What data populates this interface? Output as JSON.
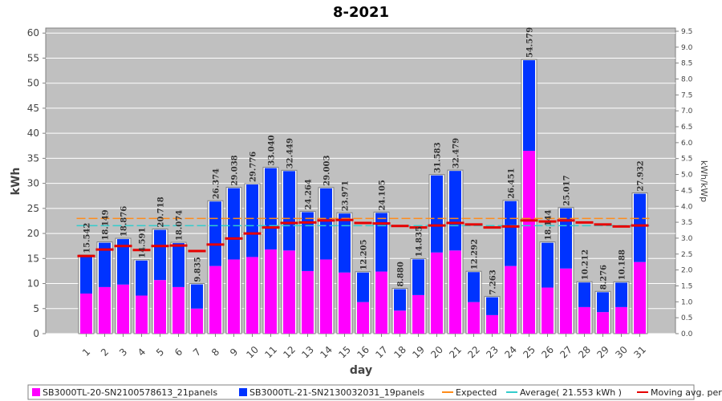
{
  "chart_data": {
    "type": "bar",
    "title": "8-2021",
    "xlabel": "day",
    "ylabel": "kWh",
    "y2label": "kWh/kWp",
    "ylim": [
      0,
      61
    ],
    "y2lim": [
      0,
      9.6
    ],
    "yticks": [
      "0",
      "5",
      "10",
      "15",
      "20",
      "25",
      "30",
      "35",
      "40",
      "45",
      "50",
      "55",
      "60"
    ],
    "y2ticks": [
      "0.0",
      "0.5",
      "1.0",
      "1.5",
      "2.0",
      "2.5",
      "3.0",
      "3.5",
      "4.0",
      "4.5",
      "5.0",
      "5.5",
      "6.0",
      "6.5",
      "7.0",
      "7.5",
      "8.0",
      "8.5",
      "9.0",
      "9.5"
    ],
    "grid": true,
    "legend_position": "bottom",
    "categories": [
      "1",
      "2",
      "3",
      "4",
      "5",
      "6",
      "7",
      "8",
      "9",
      "10",
      "11",
      "12",
      "13",
      "14",
      "15",
      "16",
      "17",
      "18",
      "19",
      "20",
      "21",
      "22",
      "23",
      "24",
      "25",
      "26",
      "27",
      "28",
      "29",
      "30",
      "31"
    ],
    "series": [
      {
        "name": "SB3000TL-20-SN2100578613_21panels",
        "color": "#ff00ff",
        "values": [
          8.0,
          9.3,
          9.8,
          7.6,
          10.7,
          9.3,
          5.0,
          13.5,
          14.8,
          15.3,
          16.8,
          16.6,
          12.5,
          14.8,
          12.2,
          6.3,
          12.4,
          4.6,
          7.7,
          16.2,
          16.6,
          6.3,
          3.7,
          13.5,
          36.5,
          9.2,
          13.0,
          5.3,
          4.3,
          5.3,
          14.3
        ]
      },
      {
        "name": "SB3000TL-21-SN2130032031_19panels",
        "color": "#0033ff",
        "values": [
          7.542,
          8.849,
          9.076,
          6.991,
          10.018,
          8.774,
          4.835,
          12.874,
          14.238,
          14.476,
          16.24,
          15.849,
          11.764,
          14.203,
          11.771,
          5.905,
          11.705,
          4.28,
          7.135,
          15.383,
          15.879,
          5.992,
          3.563,
          12.951,
          18.079,
          8.944,
          12.017,
          4.912,
          3.976,
          4.888,
          13.632
        ]
      }
    ],
    "totals": [
      "15.542",
      "18.149",
      "18.876",
      "14.591",
      "20.718",
      "18.074",
      "9.835",
      "26.374",
      "29.038",
      "29.776",
      "33.040",
      "32.449",
      "24.264",
      "29.003",
      "23.971",
      "12.205",
      "24.105",
      "8.880",
      "14.835",
      "31.583",
      "32.479",
      "12.292",
      "7.263",
      "26.451",
      "54.579",
      "18.144",
      "25.017",
      "10.212",
      "8.276",
      "10.188",
      "27.932"
    ],
    "expected": {
      "name": "Expected",
      "value": 23.0,
      "color": "#ff8c1a"
    },
    "average": {
      "name": "Average( 21.553 kWh )",
      "value": 21.553,
      "color": "#33cccc"
    },
    "moving_avg": {
      "name": "Moving avg. per day.",
      "color": "#e60000",
      "values": [
        15.5,
        16.8,
        17.5,
        16.7,
        17.5,
        17.6,
        16.5,
        17.8,
        19.0,
        20.0,
        21.2,
        22.1,
        22.2,
        22.6,
        22.7,
        22.1,
        22.0,
        21.5,
        21.2,
        21.6,
        22.1,
        21.8,
        21.2,
        21.4,
        22.6,
        22.4,
        22.6,
        22.2,
        21.8,
        21.4,
        21.6
      ]
    }
  }
}
